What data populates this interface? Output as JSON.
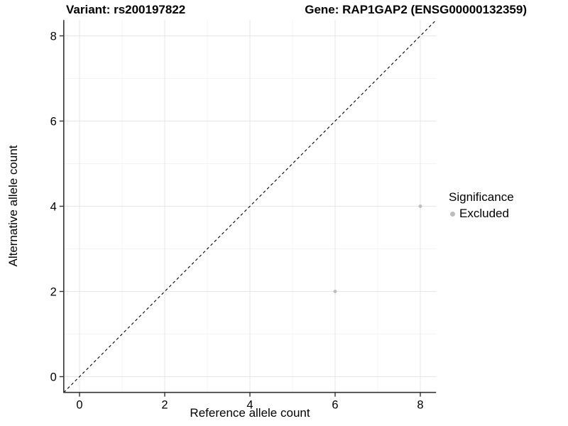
{
  "figure": {
    "title_left": "Variant: rs200197822",
    "title_right": "Gene: RAP1GAP2 (ENSG00000132359)"
  },
  "chart_data": {
    "type": "scatter",
    "title_left": "Variant: rs200197822",
    "title_right": "Gene: RAP1GAP2 (ENSG00000132359)",
    "xlabel": "Reference allele count",
    "ylabel": "Alternative allele count",
    "xlim": [
      -0.37,
      8.37
    ],
    "ylim": [
      -0.37,
      8.37
    ],
    "xticks": [
      0,
      2,
      4,
      6,
      8
    ],
    "yticks": [
      0,
      2,
      4,
      6,
      8
    ],
    "xticks_minor": [
      1,
      3,
      5,
      7
    ],
    "yticks_minor": [
      1,
      3,
      5,
      7
    ],
    "grid": true,
    "points": [
      {
        "x": 6,
        "y": 2,
        "significance": "Excluded"
      },
      {
        "x": 8,
        "y": 4,
        "significance": "Excluded"
      }
    ],
    "identity_line": {
      "from": [
        -0.37,
        -0.37
      ],
      "to": [
        8.37,
        8.37
      ],
      "style": "dashed"
    },
    "legend": {
      "position": "right",
      "title": "Significance",
      "items": [
        {
          "label": "Excluded",
          "color": "#bdbdbd"
        }
      ]
    },
    "colors": {
      "point": "#bdbdbd",
      "grid_major": "#e5e5e5",
      "grid_minor": "#f3f3f3",
      "axis_line": "#333333",
      "tick": "#333333",
      "text": "#000000",
      "identity_line": "#000000",
      "background": "#ffffff"
    }
  }
}
